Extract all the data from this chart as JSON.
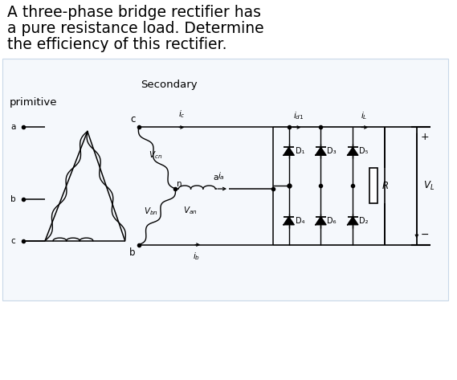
{
  "title_lines": [
    "A three-phase bridge rectifier has",
    "a pure resistance load. Determine",
    "the efficiency of this rectifier."
  ],
  "bg_color": "#ffffff",
  "text_color": "#000000",
  "fig_width": 5.69,
  "fig_height": 4.73,
  "dpi": 100,
  "title_fontsize": 13.5,
  "label_fontsize": 9.0,
  "small_fontsize": 7.5,
  "secondary_label": "Secondary",
  "primitive_label": "primitive"
}
